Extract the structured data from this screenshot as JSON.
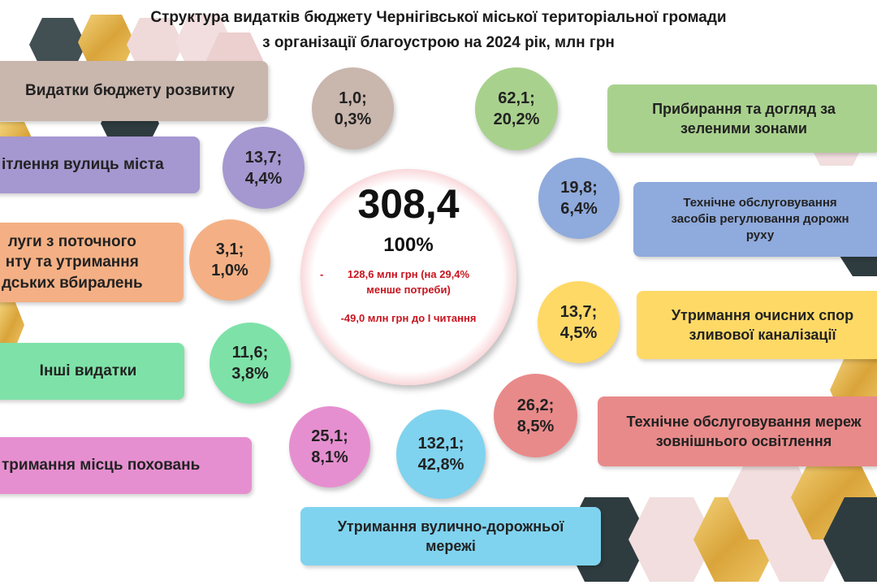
{
  "title": {
    "line1": "Структура видатків бюджету Чернігівської міської територіальної громади",
    "line2": "з організації благоустрою на 2024 рік, млн грн"
  },
  "total": {
    "value": "308,4",
    "percent": "100%",
    "note_dash": "-",
    "note1": "128,6 млн грн (на 29,4%\nменше потреби)",
    "note2": "-49,0 млн грн до І читання"
  },
  "colors": {
    "purple": "#a597d0",
    "peach": "#f4b084",
    "green": "#7ee2a8",
    "pink": "#e68fd0",
    "light_green": "#a9d18e",
    "blue": "#8faadc",
    "yellow": "#ffd966",
    "red": "#e98a8a",
    "cyan": "#7fd3ef",
    "taupe": "#c9b6ad",
    "accent_red": "#d11f2a"
  },
  "items": [
    {
      "label": "Видатки бюджету розвитку",
      "value_text": "1,0;\n0,3%",
      "amount": 1.0,
      "share": 0.3,
      "color": "#c9b6ad"
    },
    {
      "label": "ітлення вулиць міста",
      "value_text": "13,7;\n4,4%",
      "amount": 13.7,
      "share": 4.4,
      "color": "#a597d0"
    },
    {
      "label": "луги з поточного\nнту та утримання\nдських вбиралень",
      "value_text": "3,1;\n1,0%",
      "amount": 3.1,
      "share": 1.0,
      "color": "#f4b084"
    },
    {
      "label": "Інші видатки",
      "value_text": "11,6;\n3,8%",
      "amount": 11.6,
      "share": 3.8,
      "color": "#7ee2a8"
    },
    {
      "label": "тримання місць поховань",
      "value_text": "25,1;\n8,1%",
      "amount": 25.1,
      "share": 8.1,
      "color": "#e68fd0"
    },
    {
      "label": "Утримання вулично-дорожньої\nмережі",
      "value_text": "132,1;\n42,8%",
      "amount": 132.1,
      "share": 42.8,
      "color": "#7fd3ef"
    },
    {
      "label": "Технічне обслуговування мереж\nзовнішнього освітлення",
      "value_text": "26,2;\n8,5%",
      "amount": 26.2,
      "share": 8.5,
      "color": "#e98a8a"
    },
    {
      "label": "Утримання очисних спор\nзливової каналізації",
      "value_text": "13,7;\n4,5%",
      "amount": 13.7,
      "share": 4.5,
      "color": "#ffd966"
    },
    {
      "label": "Технічне обслуговування\nзасобів регулювання дорожн\nруху",
      "value_text": "19,8;\n6,4%",
      "amount": 19.8,
      "share": 6.4,
      "color": "#8faadc"
    },
    {
      "label": "Прибирання та догляд за\nзеленими зонами",
      "value_text": "62,1;\n20,2%",
      "amount": 62.1,
      "share": 20.2,
      "color": "#a9d18e"
    }
  ]
}
